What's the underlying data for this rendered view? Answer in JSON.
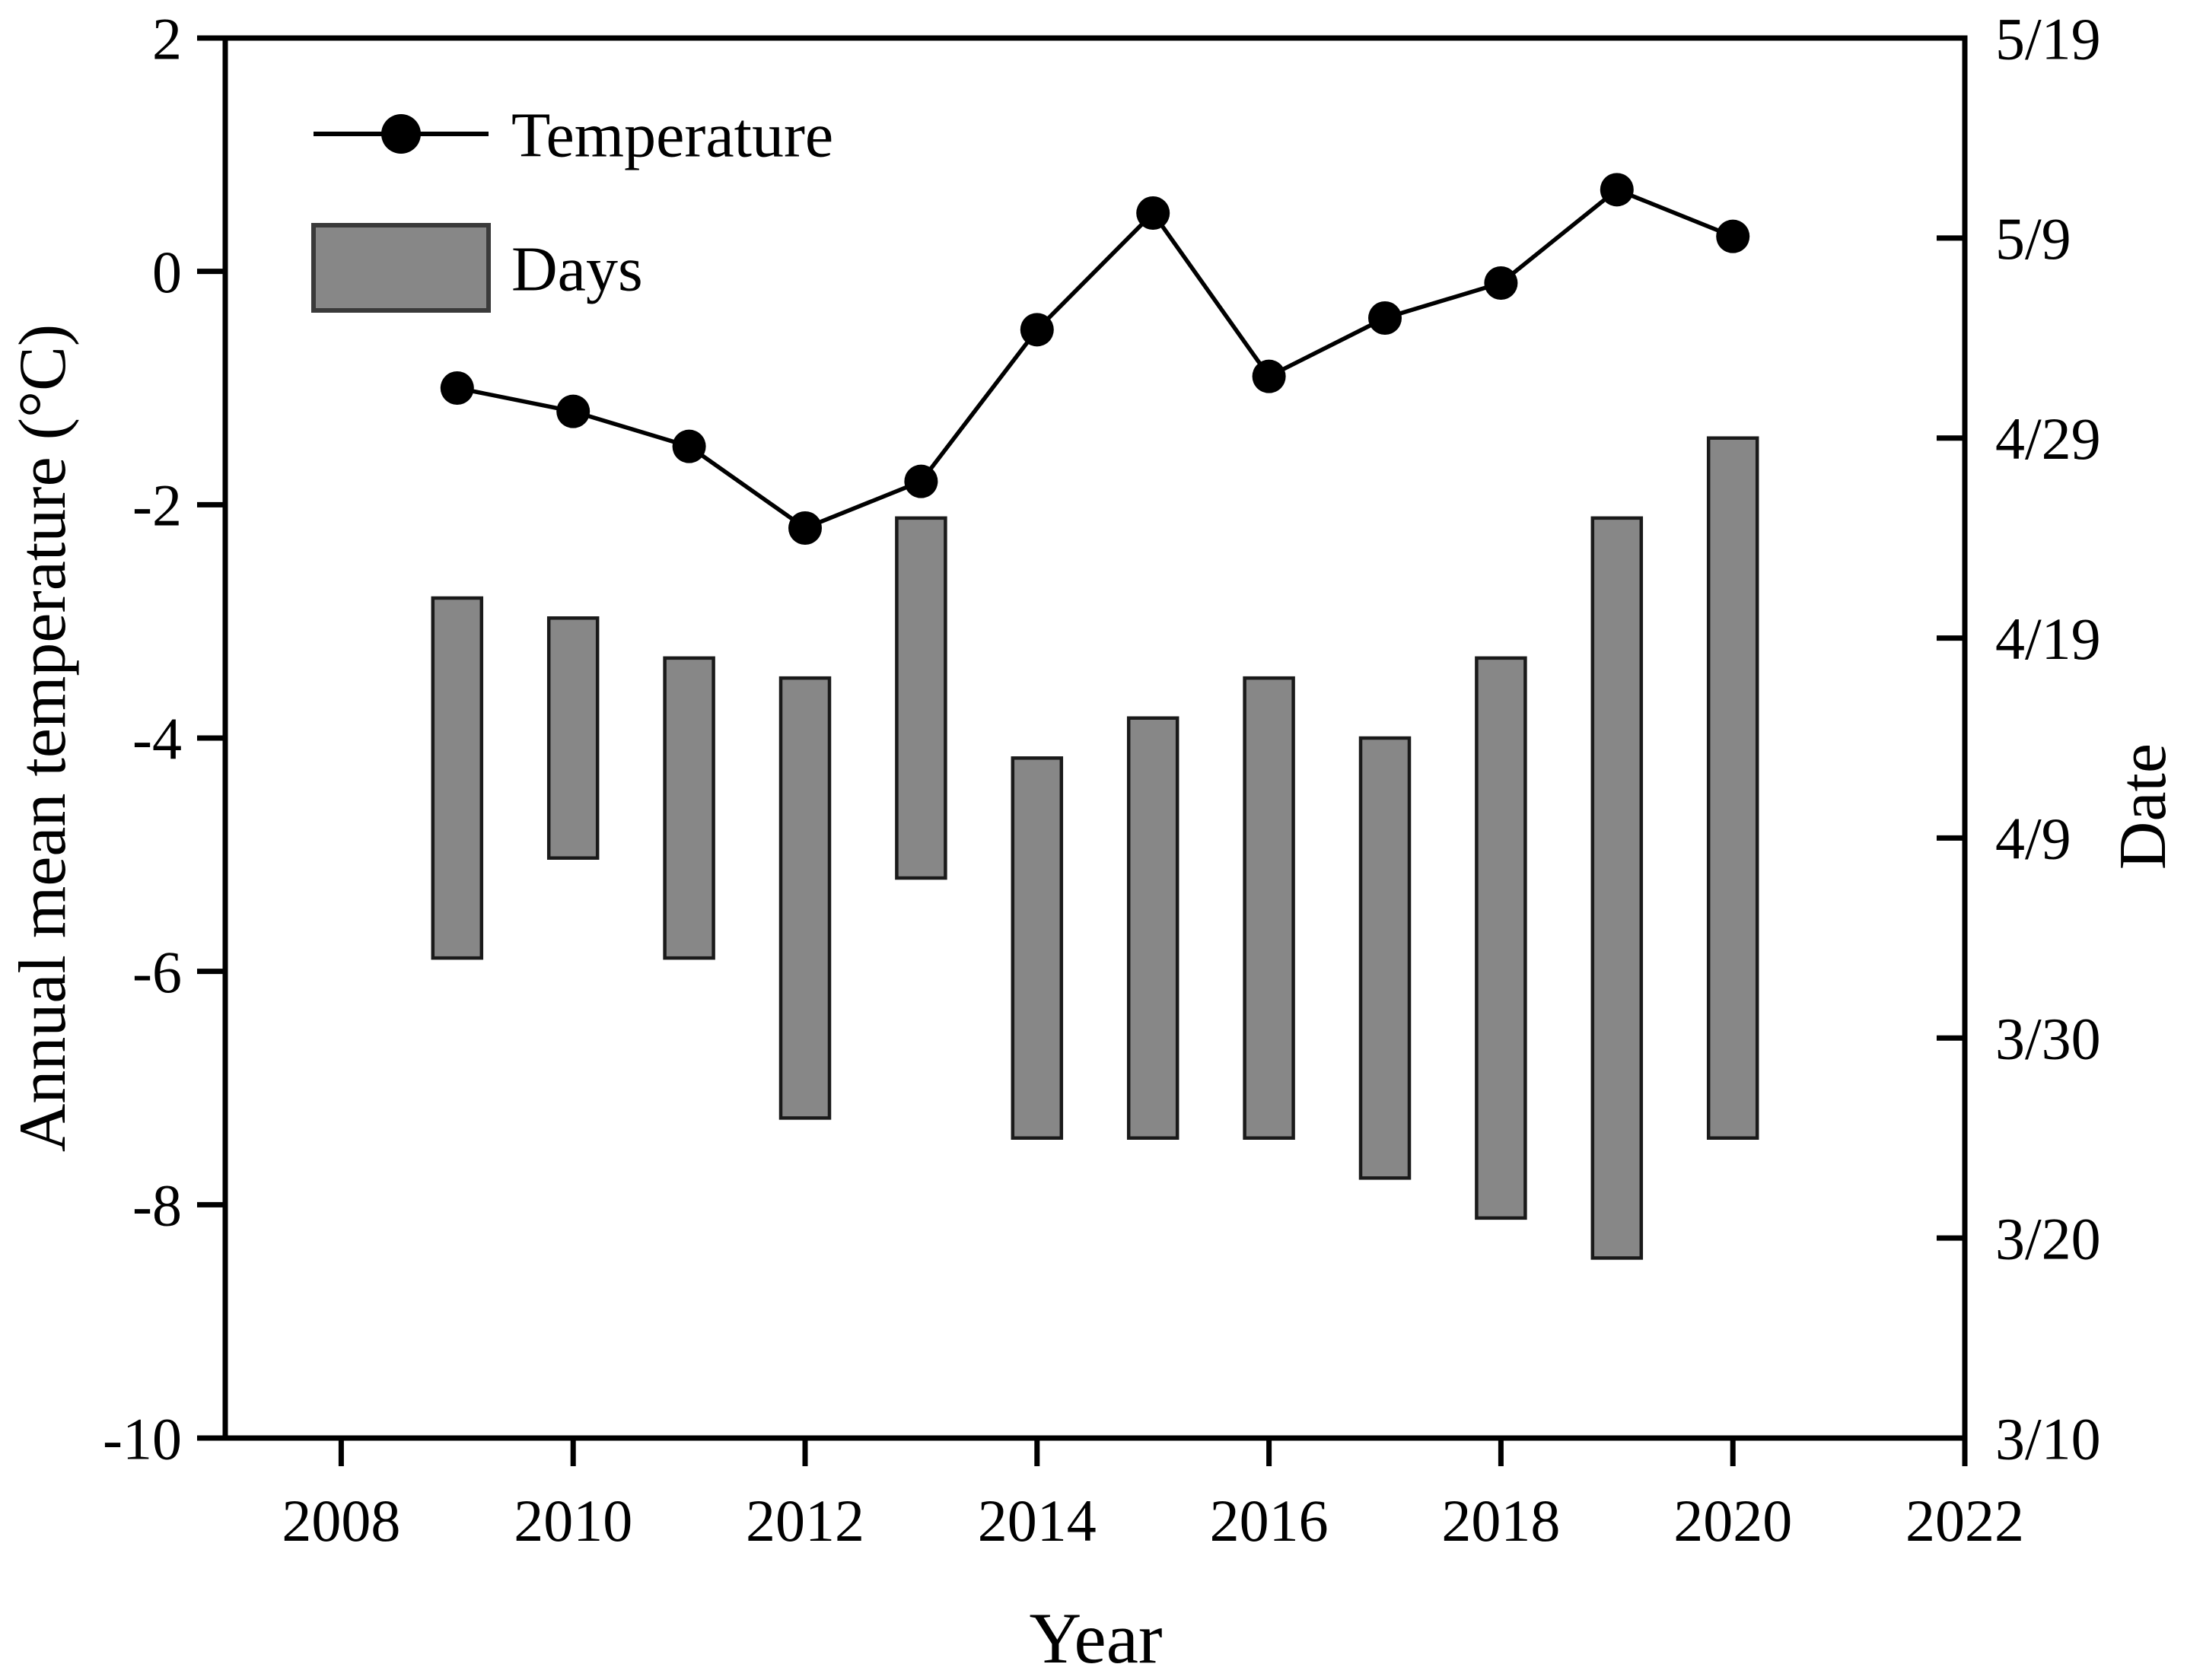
{
  "figure": {
    "background": "#ffffff",
    "legend": {
      "temperature_label": "Temperature",
      "days_label": "Days"
    },
    "colors": {
      "bar_fill": "#878787",
      "bar_border": "#1a1a1a",
      "line": "#000000",
      "marker": "#000000",
      "axis": "#000000",
      "text": "#000000"
    }
  },
  "chart_data": {
    "type": [
      "line",
      "floating-bar"
    ],
    "title": "",
    "xlabel": "Year",
    "ylabel_left": "Annual mean temperature (°C)",
    "ylabel_right": "Date",
    "xlim": [
      2007,
      2022
    ],
    "x_ticks": [
      2008,
      2010,
      2012,
      2014,
      2016,
      2018,
      2020,
      2022
    ],
    "ylim_left": [
      -10,
      2
    ],
    "y_ticks_left": [
      2,
      0,
      -2,
      -4,
      -6,
      -8,
      -10
    ],
    "right_axis_day_range": [
      0,
      70
    ],
    "y_ticks_right": [
      {
        "label": "5/19",
        "day": 70
      },
      {
        "label": "5/9",
        "day": 60
      },
      {
        "label": "4/29",
        "day": 50
      },
      {
        "label": "4/19",
        "day": 40
      },
      {
        "label": "4/9",
        "day": 30
      },
      {
        "label": "3/30",
        "day": 20
      },
      {
        "label": "3/20",
        "day": 10
      },
      {
        "label": "3/10",
        "day": 0
      }
    ],
    "grid": false,
    "legend_position": "upper-left-inside",
    "temperature_series": [
      {
        "year": 2009,
        "c": -1.0
      },
      {
        "year": 2010,
        "c": -1.2
      },
      {
        "year": 2011,
        "c": -1.5
      },
      {
        "year": 2012,
        "c": -2.2
      },
      {
        "year": 2013,
        "c": -1.8
      },
      {
        "year": 2014,
        "c": -0.5
      },
      {
        "year": 2015,
        "c": 0.5
      },
      {
        "year": 2016,
        "c": -0.9
      },
      {
        "year": 2017,
        "c": -0.4
      },
      {
        "year": 2018,
        "c": -0.1
      },
      {
        "year": 2019,
        "c": 0.7
      },
      {
        "year": 2020,
        "c": 0.3
      }
    ],
    "bars_date_range": [
      {
        "year": 2009,
        "start": "4/3",
        "end": "4/21",
        "start_day": 24,
        "end_day": 42
      },
      {
        "year": 2010,
        "start": "4/8",
        "end": "4/20",
        "start_day": 29,
        "end_day": 41
      },
      {
        "year": 2011,
        "start": "4/3",
        "end": "4/18",
        "start_day": 24,
        "end_day": 39
      },
      {
        "year": 2012,
        "start": "3/26",
        "end": "4/17",
        "start_day": 16,
        "end_day": 38
      },
      {
        "year": 2013,
        "start": "4/7",
        "end": "4/25",
        "start_day": 28,
        "end_day": 46
      },
      {
        "year": 2014,
        "start": "3/25",
        "end": "4/13",
        "start_day": 15,
        "end_day": 34
      },
      {
        "year": 2015,
        "start": "3/25",
        "end": "4/15",
        "start_day": 15,
        "end_day": 36
      },
      {
        "year": 2016,
        "start": "3/25",
        "end": "4/17",
        "start_day": 15,
        "end_day": 38
      },
      {
        "year": 2017,
        "start": "3/23",
        "end": "4/14",
        "start_day": 13,
        "end_day": 35
      },
      {
        "year": 2018,
        "start": "3/21",
        "end": "4/18",
        "start_day": 11,
        "end_day": 39
      },
      {
        "year": 2019,
        "start": "3/19",
        "end": "4/25",
        "start_day": 9,
        "end_day": 46
      },
      {
        "year": 2020,
        "start": "3/25",
        "end": "4/29",
        "start_day": 15,
        "end_day": 50
      }
    ]
  }
}
